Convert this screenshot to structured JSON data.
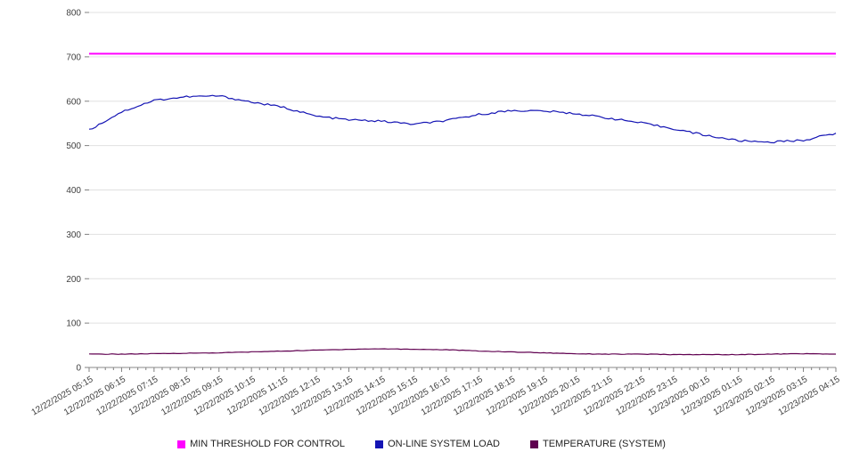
{
  "chart_data": {
    "type": "line",
    "title": "",
    "xlabel": "",
    "ylabel": "",
    "ylim": [
      0,
      800
    ],
    "y_ticks": [
      0,
      100,
      200,
      300,
      400,
      500,
      600,
      700,
      800
    ],
    "grid": true,
    "legend_position": "bottom",
    "x_labels": [
      "12/22/2025 05:15",
      "12/22/2025 06:15",
      "12/22/2025 07:15",
      "12/22/2025 08:15",
      "12/22/2025 09:15",
      "12/22/2025 10:15",
      "12/22/2025 11:15",
      "12/22/2025 12:15",
      "12/22/2025 13:15",
      "12/22/2025 14:15",
      "12/22/2025 15:15",
      "12/22/2025 16:15",
      "12/22/2025 17:15",
      "12/22/2025 18:15",
      "12/22/2025 19:15",
      "12/22/2025 20:15",
      "12/22/2025 21:15",
      "12/22/2025 22:15",
      "12/22/2025 23:15",
      "12/23/2025 00:15",
      "12/23/2025 01:15",
      "12/23/2025 02:15",
      "12/23/2025 03:15",
      "12/23/2025 04:15"
    ],
    "series": [
      {
        "name": "MIN THRESHOLD FOR CONTROL",
        "color": "#ff00ff",
        "noise": 0,
        "width": 2,
        "values": [
          707,
          707,
          707,
          707,
          707,
          707,
          707,
          707,
          707,
          707,
          707,
          707,
          707,
          707,
          707,
          707,
          707,
          707,
          707,
          707,
          707,
          707,
          707,
          707
        ]
      },
      {
        "name": "ON-LINE SYSTEM LOAD",
        "color": "#1414b4",
        "noise": 2.2,
        "width": 1.2,
        "values": [
          535,
          576,
          602,
          610,
          612,
          598,
          586,
          566,
          558,
          555,
          548,
          556,
          570,
          579,
          578,
          572,
          562,
          551,
          538,
          523,
          511,
          508,
          512,
          528
        ]
      },
      {
        "name": "TEMPERATURE (SYSTEM)",
        "color": "#600050",
        "noise": 0.6,
        "width": 1.2,
        "values": [
          30,
          30,
          31,
          32,
          33,
          35,
          37,
          39,
          41,
          42,
          41,
          40,
          37,
          35,
          33,
          31,
          30,
          30,
          29,
          29,
          29,
          30,
          31,
          30
        ]
      }
    ]
  }
}
